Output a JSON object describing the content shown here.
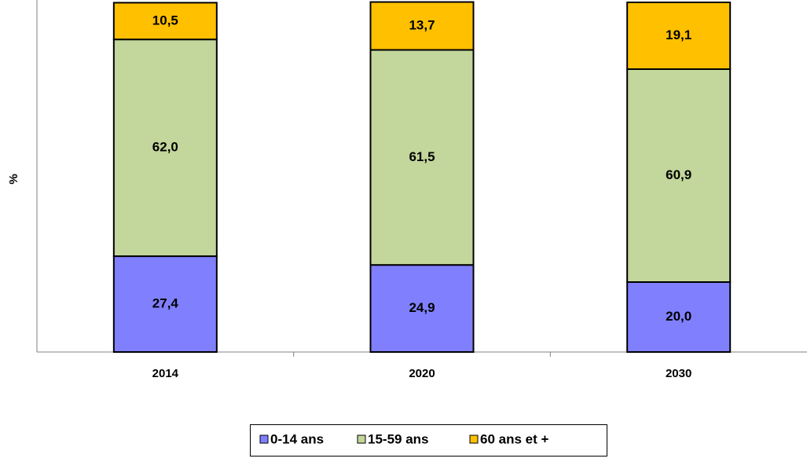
{
  "chart_data": {
    "type": "stacked_bar",
    "y_label": "%",
    "categories": [
      "2014",
      "2020",
      "2030"
    ],
    "ylim": [
      0,
      100
    ],
    "series": [
      {
        "name": "0-14 ans",
        "color": "#8080ff",
        "values": [
          27.4,
          24.9,
          20.0
        ],
        "value_labels": [
          "27,4",
          "24,9",
          "20,0"
        ]
      },
      {
        "name": "15-59 ans",
        "color": "#c3d69b",
        "values": [
          62.0,
          61.5,
          60.9
        ],
        "value_labels": [
          "62,0",
          "61,5",
          "60,9"
        ]
      },
      {
        "name": "60 ans et +",
        "color": "#ffc000",
        "values": [
          10.5,
          13.7,
          19.1
        ],
        "value_labels": [
          "10,5",
          "13,7",
          "19,1"
        ]
      }
    ],
    "legend": "bottom"
  }
}
